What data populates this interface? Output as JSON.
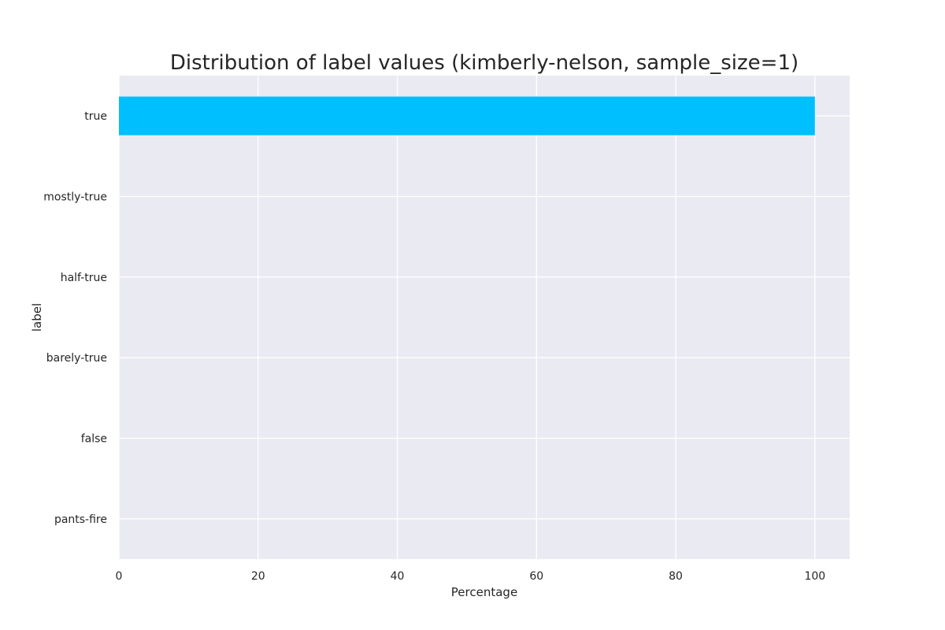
{
  "chart_data": {
    "type": "bar",
    "orientation": "horizontal",
    "title": "Distribution of label values (kimberly-nelson, sample_size=1)",
    "xlabel": "Percentage",
    "ylabel": "label",
    "categories": [
      "true",
      "mostly-true",
      "half-true",
      "barely-true",
      "false",
      "pants-fire"
    ],
    "values": [
      100,
      0,
      0,
      0,
      0,
      0
    ],
    "xlim": [
      0,
      105
    ],
    "xticks": [
      0,
      20,
      40,
      60,
      80,
      100
    ],
    "grid": true,
    "bar_color": "#00bfff",
    "plot_background": "#eaeaf2",
    "grid_color": "#ffffff"
  }
}
